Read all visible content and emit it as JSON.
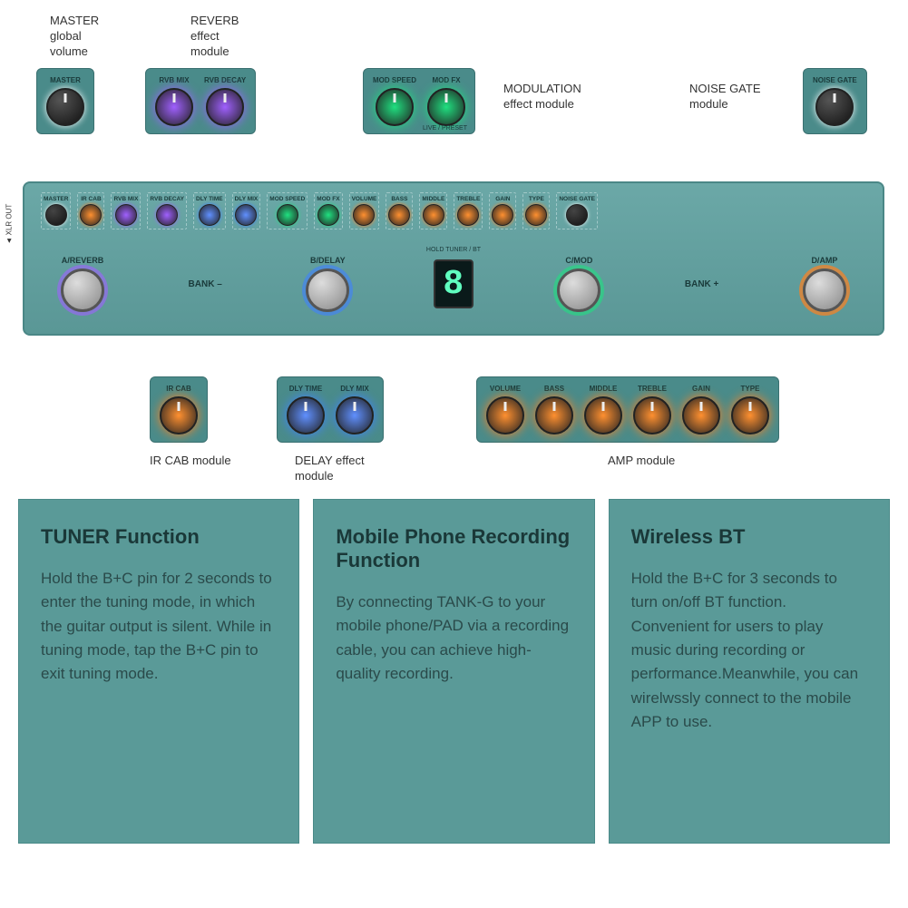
{
  "colors": {
    "pedal_body": "#5a9796",
    "module_bg": "#4a8b8a",
    "card_bg": "#5a9a98",
    "glow_purple": "#a060ff",
    "glow_green": "#20e080",
    "glow_orange": "#ff8020",
    "glow_blue": "#4080ff",
    "glow_white": "#ffffff",
    "display_digit": "#60ffc0"
  },
  "labels": {
    "master_desc": "MASTER\nglobal\nvolume",
    "reverb_desc": "REVERB\neffect\nmodule",
    "modulation_desc": "MODULATION\neffect module",
    "noise_gate_desc": "NOISE GATE\nmodule",
    "ir_cab_desc": "IR CAB module",
    "delay_desc": "DELAY effect\nmodule",
    "amp_desc": "AMP module",
    "xlr_out": "◄ XLR OUT",
    "hold_tuner": "HOLD TUNER / BT",
    "live_preset": "LIVE / PRESET"
  },
  "top_modules": {
    "master": {
      "knobs": [
        {
          "label": "MASTER",
          "color": "white"
        }
      ]
    },
    "reverb": {
      "knobs": [
        {
          "label": "RVB MIX",
          "color": "purple"
        },
        {
          "label": "RVB DECAY",
          "color": "purple"
        }
      ]
    },
    "modulation": {
      "knobs": [
        {
          "label": "MOD SPEED",
          "color": "green"
        },
        {
          "label": "MOD FX",
          "color": "green"
        }
      ]
    },
    "noise_gate": {
      "knobs": [
        {
          "label": "NOISE GATE",
          "color": "white"
        }
      ]
    }
  },
  "bottom_modules": {
    "ir_cab": {
      "knobs": [
        {
          "label": "IR CAB",
          "color": "orange"
        }
      ]
    },
    "delay": {
      "knobs": [
        {
          "label": "DLY TIME",
          "color": "blue"
        },
        {
          "label": "DLY MIX",
          "color": "blue"
        }
      ]
    },
    "amp": {
      "knobs": [
        {
          "label": "VOLUME",
          "color": "orange"
        },
        {
          "label": "BASS",
          "color": "orange"
        },
        {
          "label": "MIDDLE",
          "color": "orange"
        },
        {
          "label": "TREBLE",
          "color": "orange"
        },
        {
          "label": "GAIN",
          "color": "orange"
        },
        {
          "label": "TYPE",
          "color": "orange"
        }
      ]
    }
  },
  "pedal_row": [
    {
      "label": "MASTER",
      "color": "white"
    },
    {
      "label": "IR CAB",
      "color": "orange"
    },
    {
      "label": "RVB MIX",
      "color": "purple"
    },
    {
      "label": "RVB DECAY",
      "color": "purple"
    },
    {
      "label": "DLY TIME",
      "color": "blue"
    },
    {
      "label": "DLY MIX",
      "color": "blue"
    },
    {
      "label": "MOD SPEED",
      "color": "green"
    },
    {
      "label": "MOD FX",
      "color": "green"
    },
    {
      "label": "VOLUME",
      "color": "orange"
    },
    {
      "label": "BASS",
      "color": "orange"
    },
    {
      "label": "MIDDLE",
      "color": "orange"
    },
    {
      "label": "TREBLE",
      "color": "orange"
    },
    {
      "label": "GAIN",
      "color": "orange"
    },
    {
      "label": "TYPE",
      "color": "orange"
    },
    {
      "label": "NOISE GATE",
      "color": "white"
    }
  ],
  "foot_switches": [
    {
      "label": "A/REVERB",
      "ring": "purple"
    },
    {
      "label": "B/DELAY",
      "ring": "blue"
    },
    {
      "label": "C/MOD",
      "ring": "green"
    },
    {
      "label": "D/AMP",
      "ring": "orange"
    }
  ],
  "bank_minus": "BANK –",
  "bank_plus": "BANK +",
  "display_value": "8",
  "cards": [
    {
      "title": "TUNER Function",
      "body": "Hold the B+C pin for 2 seconds to enter the tuning mode, in which the guitar output is silent. While in tuning mode, tap the B+C pin to exit tuning mode."
    },
    {
      "title": "Mobile Phone Recording Function",
      "body": "By connecting TANK-G to your mobile phone/PAD via a recording cable, you can achieve high-quality recording."
    },
    {
      "title": "Wireless BT",
      "body": "Hold the B+C for 3 seconds to turn on/off BT function. Convenient for users to play music during recording or performance.Meanwhile, you can wirelwssly connect to the mobile APP to use."
    }
  ]
}
